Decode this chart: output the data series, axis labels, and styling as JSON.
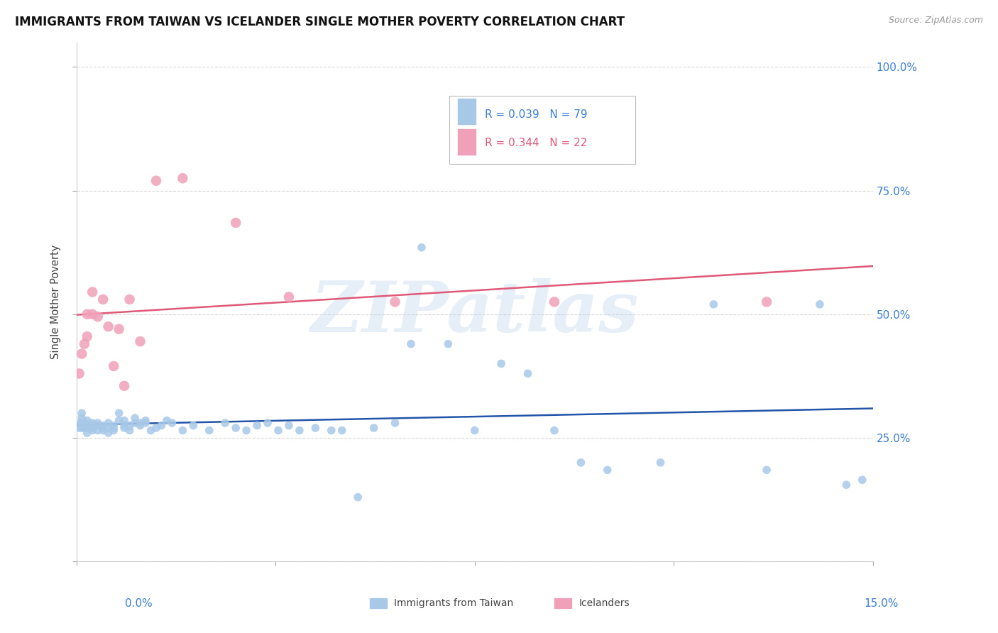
{
  "title": "IMMIGRANTS FROM TAIWAN VS ICELANDER SINGLE MOTHER POVERTY CORRELATION CHART",
  "source": "Source: ZipAtlas.com",
  "ylabel": "Single Mother Poverty",
  "yticks": [
    0.0,
    0.25,
    0.5,
    0.75,
    1.0
  ],
  "ytick_labels": [
    "",
    "25.0%",
    "50.0%",
    "75.0%",
    "100.0%"
  ],
  "xlim": [
    0.0,
    0.15
  ],
  "ylim": [
    0.0,
    1.05
  ],
  "watermark": "ZIPatlas",
  "taiwan_color": "#a8c8e8",
  "iceland_color": "#f0a0b8",
  "taiwan_line_color": "#2255aa",
  "iceland_line_color": "#e05878",
  "background_color": "#ffffff",
  "grid_color": "#d8d8d8",
  "taiwan_x": [
    0.0005,
    0.0008,
    0.001,
    0.001,
    0.001,
    0.001,
    0.0015,
    0.0015,
    0.002,
    0.002,
    0.002,
    0.002,
    0.0025,
    0.003,
    0.003,
    0.003,
    0.003,
    0.004,
    0.004,
    0.004,
    0.005,
    0.005,
    0.005,
    0.006,
    0.006,
    0.006,
    0.007,
    0.007,
    0.007,
    0.008,
    0.008,
    0.009,
    0.009,
    0.009,
    0.01,
    0.01,
    0.011,
    0.011,
    0.012,
    0.012,
    0.013,
    0.013,
    0.014,
    0.015,
    0.016,
    0.017,
    0.018,
    0.02,
    0.022,
    0.025,
    0.028,
    0.03,
    0.032,
    0.034,
    0.036,
    0.038,
    0.04,
    0.042,
    0.045,
    0.048,
    0.05,
    0.053,
    0.056,
    0.06,
    0.063,
    0.065,
    0.07,
    0.075,
    0.08,
    0.085,
    0.09,
    0.095,
    0.1,
    0.11,
    0.12,
    0.13,
    0.14,
    0.145,
    0.148
  ],
  "taiwan_y": [
    0.27,
    0.28,
    0.29,
    0.27,
    0.28,
    0.3,
    0.27,
    0.28,
    0.285,
    0.275,
    0.27,
    0.26,
    0.275,
    0.28,
    0.275,
    0.27,
    0.265,
    0.265,
    0.28,
    0.275,
    0.265,
    0.27,
    0.275,
    0.26,
    0.27,
    0.28,
    0.265,
    0.275,
    0.27,
    0.3,
    0.285,
    0.275,
    0.285,
    0.27,
    0.265,
    0.275,
    0.28,
    0.29,
    0.28,
    0.275,
    0.285,
    0.28,
    0.265,
    0.27,
    0.275,
    0.285,
    0.28,
    0.265,
    0.275,
    0.265,
    0.28,
    0.27,
    0.265,
    0.275,
    0.28,
    0.265,
    0.275,
    0.265,
    0.27,
    0.265,
    0.265,
    0.13,
    0.27,
    0.28,
    0.44,
    0.635,
    0.44,
    0.265,
    0.4,
    0.38,
    0.265,
    0.2,
    0.185,
    0.2,
    0.52,
    0.185,
    0.52,
    0.155,
    0.165
  ],
  "iceland_x": [
    0.0005,
    0.001,
    0.0015,
    0.002,
    0.002,
    0.003,
    0.003,
    0.004,
    0.005,
    0.006,
    0.007,
    0.008,
    0.009,
    0.01,
    0.012,
    0.015,
    0.02,
    0.03,
    0.04,
    0.06,
    0.09,
    0.13
  ],
  "iceland_y": [
    0.38,
    0.42,
    0.44,
    0.455,
    0.5,
    0.5,
    0.545,
    0.495,
    0.53,
    0.475,
    0.395,
    0.47,
    0.355,
    0.53,
    0.445,
    0.77,
    0.775,
    0.685,
    0.535,
    0.525,
    0.525,
    0.525
  ],
  "legend_taiwan_label": "R = 0.039   N = 79",
  "legend_iceland_label": "R = 0.344   N = 22",
  "bottom_legend_taiwan": "Immigrants from Taiwan",
  "bottom_legend_iceland": "Icelanders"
}
